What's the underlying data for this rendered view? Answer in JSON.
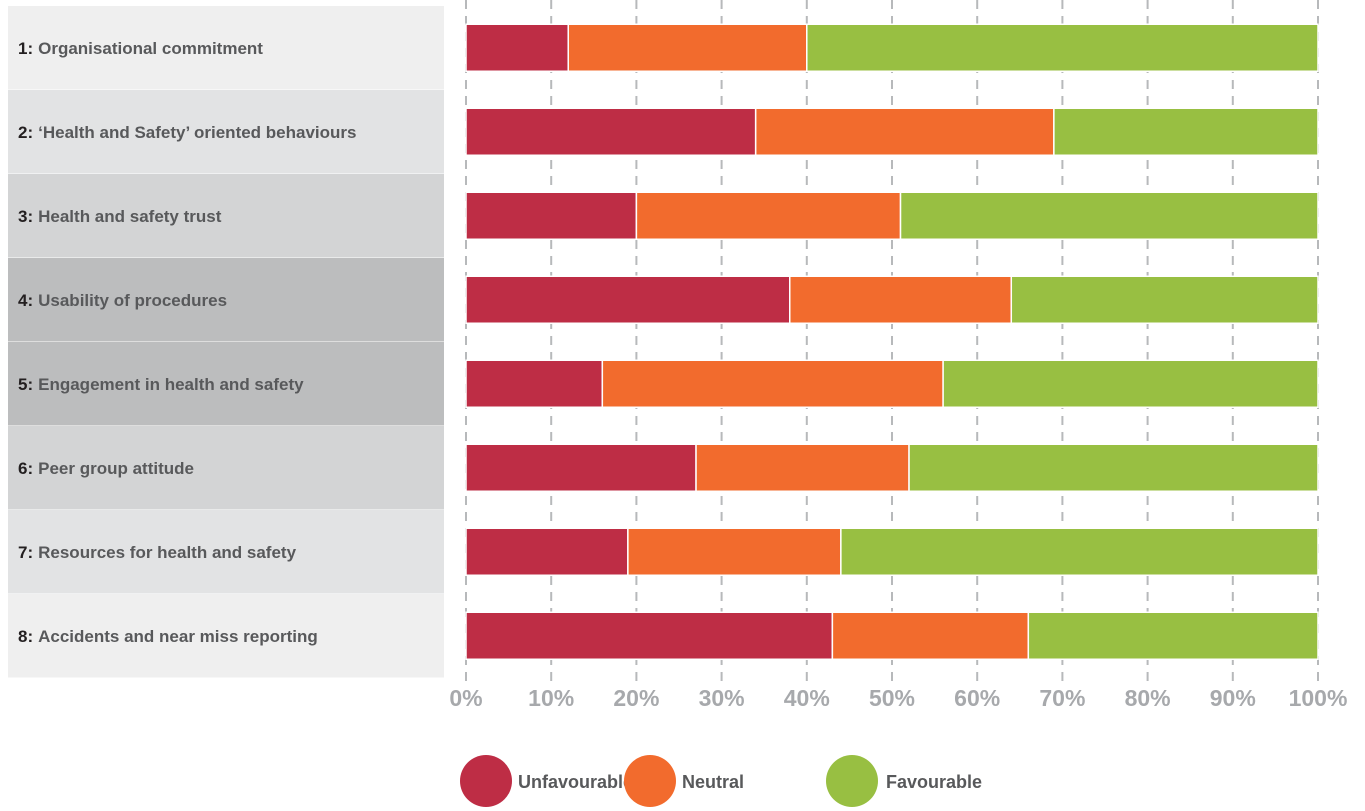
{
  "chart_data": {
    "type": "bar",
    "stacked": true,
    "orientation": "horizontal",
    "categories": [
      {
        "number": "1:",
        "label": "Organisational commitment"
      },
      {
        "number": "2:",
        "label": "‘Health and Safety’ oriented behaviours"
      },
      {
        "number": "3:",
        "label": "Health and safety trust"
      },
      {
        "number": "4:",
        "label": "Usability of procedures"
      },
      {
        "number": "5:",
        "label": "Engagement in health and safety"
      },
      {
        "number": "6:",
        "label": "Peer group attitude"
      },
      {
        "number": "7:",
        "label": "Resources for health and safety"
      },
      {
        "number": "8:",
        "label": "Accidents and near miss reporting"
      }
    ],
    "series": [
      {
        "name": "Unfavourable",
        "color": "#be2d45",
        "values": [
          12,
          34,
          20,
          38,
          16,
          27,
          19,
          43
        ]
      },
      {
        "name": "Neutral",
        "color": "#f26b2d",
        "values": [
          28,
          35,
          31,
          26,
          40,
          25,
          25,
          23
        ]
      },
      {
        "name": "Favourable",
        "color": "#98bf42",
        "values": [
          60,
          31,
          49,
          36,
          44,
          48,
          56,
          34
        ]
      }
    ],
    "xlim": [
      0,
      100
    ],
    "x_ticks": [
      "0%",
      "10%",
      "20%",
      "30%",
      "40%",
      "50%",
      "60%",
      "70%",
      "80%",
      "90%",
      "100%"
    ],
    "grid": true,
    "legend_position": "bottom-center",
    "label_row_colors": [
      "#efefef",
      "#e2e3e4",
      "#d3d4d5",
      "#bcbdbe",
      "#bcbdbe",
      "#d3d4d5",
      "#e2e3e4",
      "#efefef"
    ],
    "tick_color": "#a7a9ac",
    "grid_color": "#b7b9bb",
    "label_text_color": "#58595b"
  }
}
